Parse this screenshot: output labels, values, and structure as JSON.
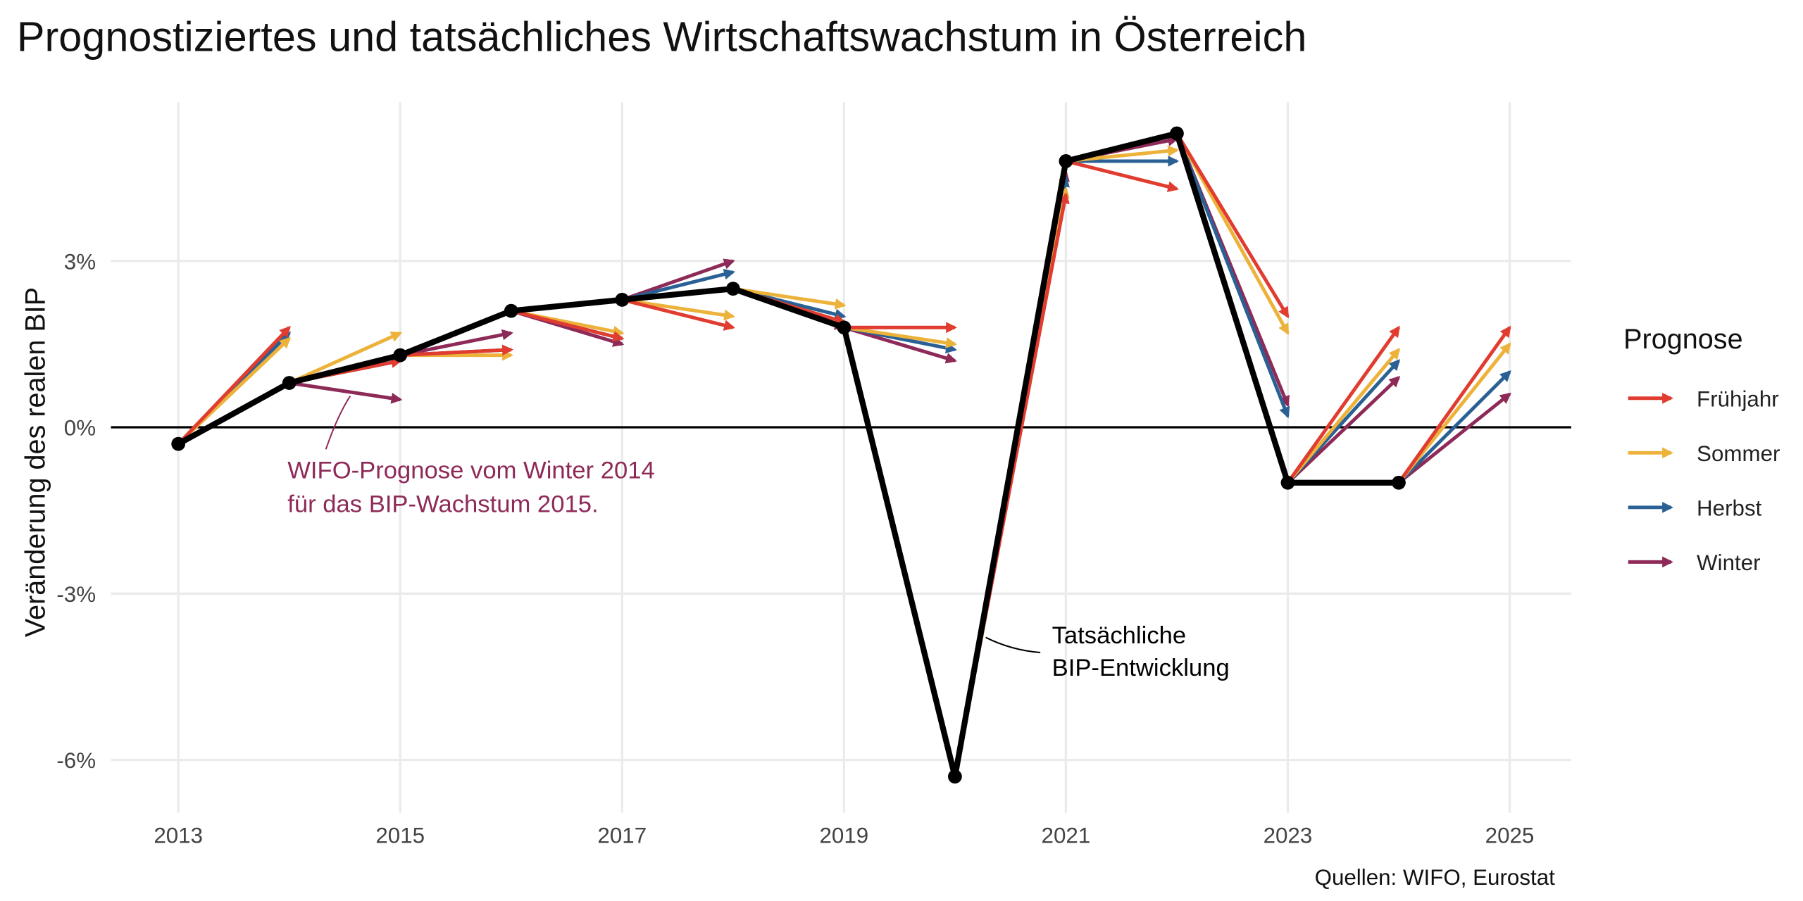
{
  "chart_data": {
    "type": "line",
    "title": "Prognostiziertes und tatsächliches Wirtschaftswachstum in Österreich",
    "xlabel": "",
    "ylabel": "Veränderung des realen BIP",
    "caption": "Quellen: WIFO, Eurostat",
    "xlim": [
      2012.4,
      2025.6
    ],
    "ylim": [
      -6.9,
      6.0
    ],
    "x_ticks": [
      "2013",
      "2015",
      "2017",
      "2019",
      "2021",
      "2023",
      "2025"
    ],
    "y_ticks": [
      {
        "value": 3,
        "label": "3%"
      },
      {
        "value": 0,
        "label": "0%"
      },
      {
        "value": -3,
        "label": "-3%"
      },
      {
        "value": -6,
        "label": "-6%"
      }
    ],
    "grid": true,
    "actual": {
      "years": [
        2013,
        2014,
        2015,
        2016,
        2017,
        2018,
        2019,
        2020,
        2021,
        2022,
        2023,
        2024
      ],
      "values": [
        -0.3,
        0.8,
        1.3,
        2.1,
        2.3,
        2.5,
        1.8,
        -6.3,
        4.8,
        5.3,
        -1.0,
        -1.0
      ],
      "color": "#000000"
    },
    "forecast_years": [
      2014,
      2015,
      2016,
      2017,
      2018,
      2019,
      2020,
      2021,
      2022,
      2023,
      2024,
      2025
    ],
    "series": [
      {
        "name": "Frühjahr",
        "color": "#E03C2F",
        "values": [
          1.8,
          1.2,
          1.4,
          1.6,
          1.8,
          1.9,
          1.8,
          4.2,
          4.3,
          2.0,
          1.8,
          1.8
        ]
      },
      {
        "name": "Sommer",
        "color": "#ECB23A",
        "values": [
          1.6,
          1.7,
          1.3,
          1.7,
          2.0,
          2.2,
          1.5,
          4.3,
          5.0,
          1.7,
          1.4,
          1.5
        ]
      },
      {
        "name": "Herbst",
        "color": "#2A6094",
        "values": [
          1.7,
          1.2,
          1.4,
          1.6,
          2.8,
          2.0,
          1.4,
          4.5,
          4.8,
          0.2,
          1.2,
          1.0
        ]
      },
      {
        "name": "Winter",
        "color": "#8E2A58",
        "values": [
          1.7,
          0.5,
          1.7,
          1.5,
          3.0,
          1.8,
          1.2,
          4.6,
          5.2,
          0.4,
          0.9,
          0.6
        ]
      }
    ],
    "legend": {
      "title": "Prognose",
      "placement": "right"
    },
    "annotations": [
      {
        "text_lines": [
          "WIFO-Prognose vom Winter 2014",
          "für das BIP-Wachstum 2015."
        ],
        "color": "#8E2A58"
      },
      {
        "text_lines": [
          "Tatsächliche",
          "BIP-Entwicklung"
        ],
        "color": "#000000"
      }
    ]
  }
}
